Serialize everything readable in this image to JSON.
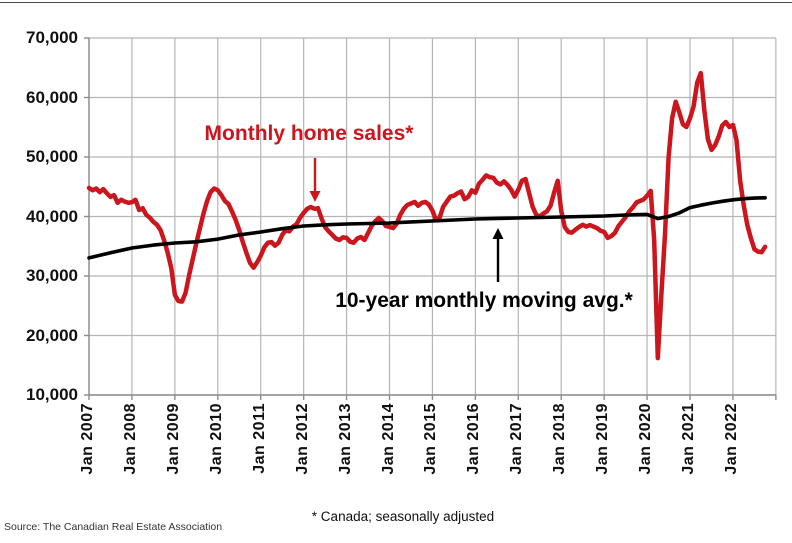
{
  "chart_data": {
    "type": "line",
    "title": "",
    "grid": true,
    "legend_position": "inline-annotations",
    "ylim": [
      10000,
      70000
    ],
    "y_ticks": [
      10000,
      20000,
      30000,
      40000,
      50000,
      60000,
      70000
    ],
    "y_tick_labels": [
      "10,000",
      "20,000",
      "30,000",
      "40,000",
      "50,000",
      "60,000",
      "70,000"
    ],
    "x_tick_labels": [
      "Jan 2007",
      "Jan 2008",
      "Jan 2009",
      "Jan 2010",
      "Jan 2011",
      "Jan 2012",
      "Jan 2013",
      "Jan 2014",
      "Jan 2015",
      "Jan 2016",
      "Jan 2017",
      "Jan 2018",
      "Jan 2019",
      "Jan 2020",
      "Jan 2021",
      "Jan 2022"
    ],
    "colors": {
      "grid": "#b5b5b5",
      "axis": "#8c8c8c",
      "sales": "#cb161d",
      "avg": "#000000"
    },
    "series": [
      {
        "name": "Monthly home sales*",
        "color": "#cb161d",
        "start": "2007-01",
        "interval": "month",
        "values": [
          44800,
          44400,
          44700,
          44100,
          44600,
          43900,
          43300,
          43600,
          42300,
          42800,
          42500,
          42300,
          42400,
          42800,
          41100,
          41400,
          40300,
          39800,
          39100,
          38600,
          37700,
          36000,
          33900,
          31300,
          26800,
          25800,
          25700,
          27200,
          30200,
          32800,
          35500,
          38000,
          40500,
          42600,
          44100,
          44700,
          44400,
          43600,
          42600,
          42100,
          40800,
          39400,
          37700,
          35700,
          33900,
          32200,
          31400,
          32300,
          33400,
          34800,
          35600,
          35700,
          35100,
          35600,
          36900,
          37700,
          37500,
          38300,
          38700,
          39800,
          40600,
          41300,
          41600,
          41300,
          41400,
          39700,
          38200,
          37500,
          36900,
          36300,
          36050,
          36500,
          36400,
          35750,
          35600,
          36300,
          36550,
          36050,
          37200,
          38400,
          39200,
          39750,
          39200,
          38400,
          38250,
          38050,
          38800,
          40250,
          41300,
          41950,
          42200,
          42450,
          41800,
          42300,
          42450,
          42000,
          41000,
          39400,
          39800,
          41650,
          42500,
          43350,
          43500,
          43900,
          44200,
          42900,
          43300,
          44400,
          44000,
          45500,
          46150,
          46900,
          46600,
          46500,
          45700,
          45400,
          45900,
          45300,
          44500,
          43350,
          44500,
          46000,
          46300,
          44000,
          41650,
          40300,
          40000,
          40500,
          40850,
          41800,
          44000,
          46000,
          41000,
          38200,
          37400,
          37300,
          37800,
          38250,
          38600,
          38300,
          38550,
          38300,
          38050,
          37600,
          37400,
          36400,
          36700,
          37250,
          38400,
          39150,
          39900,
          40850,
          41500,
          42350,
          42600,
          42850,
          43500,
          44300,
          36000,
          16200,
          27000,
          37000,
          50000,
          56500,
          59300,
          57500,
          55500,
          55040,
          56500,
          58500,
          62500,
          64100,
          57900,
          53000,
          51200,
          52000,
          53400,
          55300,
          55880,
          55040,
          55380,
          52860,
          46100,
          41900,
          38570,
          36400,
          34500,
          34100,
          34000,
          34900
        ]
      },
      {
        "name": "10-year monthly moving avg.*",
        "color": "#000000",
        "start": "2007-01",
        "interval": "month",
        "points_month_value": [
          [
            0,
            33050
          ],
          [
            6,
            33900
          ],
          [
            12,
            34700
          ],
          [
            18,
            35200
          ],
          [
            24,
            35550
          ],
          [
            30,
            35750
          ],
          [
            36,
            36200
          ],
          [
            42,
            36900
          ],
          [
            48,
            37400
          ],
          [
            54,
            37950
          ],
          [
            60,
            38400
          ],
          [
            66,
            38600
          ],
          [
            72,
            38740
          ],
          [
            78,
            38820
          ],
          [
            84,
            38900
          ],
          [
            90,
            39100
          ],
          [
            96,
            39240
          ],
          [
            102,
            39420
          ],
          [
            108,
            39580
          ],
          [
            114,
            39680
          ],
          [
            120,
            39750
          ],
          [
            126,
            39840
          ],
          [
            132,
            39920
          ],
          [
            138,
            40000
          ],
          [
            144,
            40080
          ],
          [
            150,
            40250
          ],
          [
            156,
            40350
          ],
          [
            159,
            39650
          ],
          [
            162,
            40000
          ],
          [
            165,
            40600
          ],
          [
            168,
            41500
          ],
          [
            171,
            41900
          ],
          [
            174,
            42250
          ],
          [
            177,
            42550
          ],
          [
            180,
            42800
          ],
          [
            183,
            43000
          ],
          [
            186,
            43100
          ],
          [
            189,
            43150
          ]
        ]
      }
    ],
    "annotations": [
      {
        "text": "Monthly home sales*",
        "color": "#cb161d",
        "label_x": 309,
        "label_y": 122,
        "arrow": {
          "x": 315,
          "y_from": 158,
          "y_to": 202,
          "dir": "down"
        }
      },
      {
        "text": "10-year monthly moving avg.*",
        "color": "#000000",
        "label_x": 484,
        "label_y": 289,
        "arrow": {
          "x": 498,
          "y_from": 282,
          "y_to": 228,
          "dir": "up"
        }
      }
    ],
    "footnote": "* Canada; seasonally adjusted",
    "source": "Source: The Canadian Real Estate Association"
  }
}
